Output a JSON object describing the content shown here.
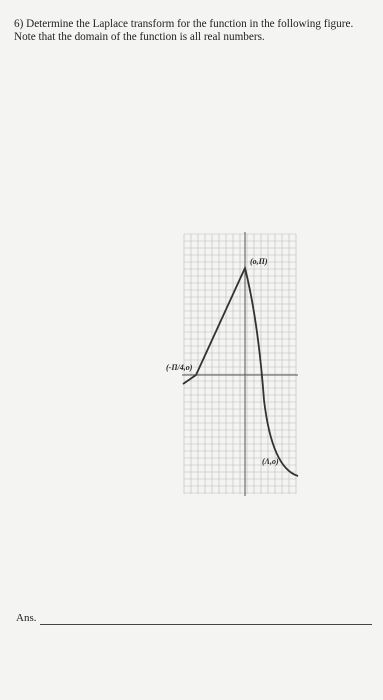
{
  "question": {
    "text": "6) Determine the Laplace transform for the function in the following figure. Note that the domain of the function is all real numbers."
  },
  "graph": {
    "labels": [
      "(o,Π)",
      "(-Π/4,o)",
      "(Λ,o)"
    ]
  },
  "answer": {
    "label": "Ans."
  }
}
